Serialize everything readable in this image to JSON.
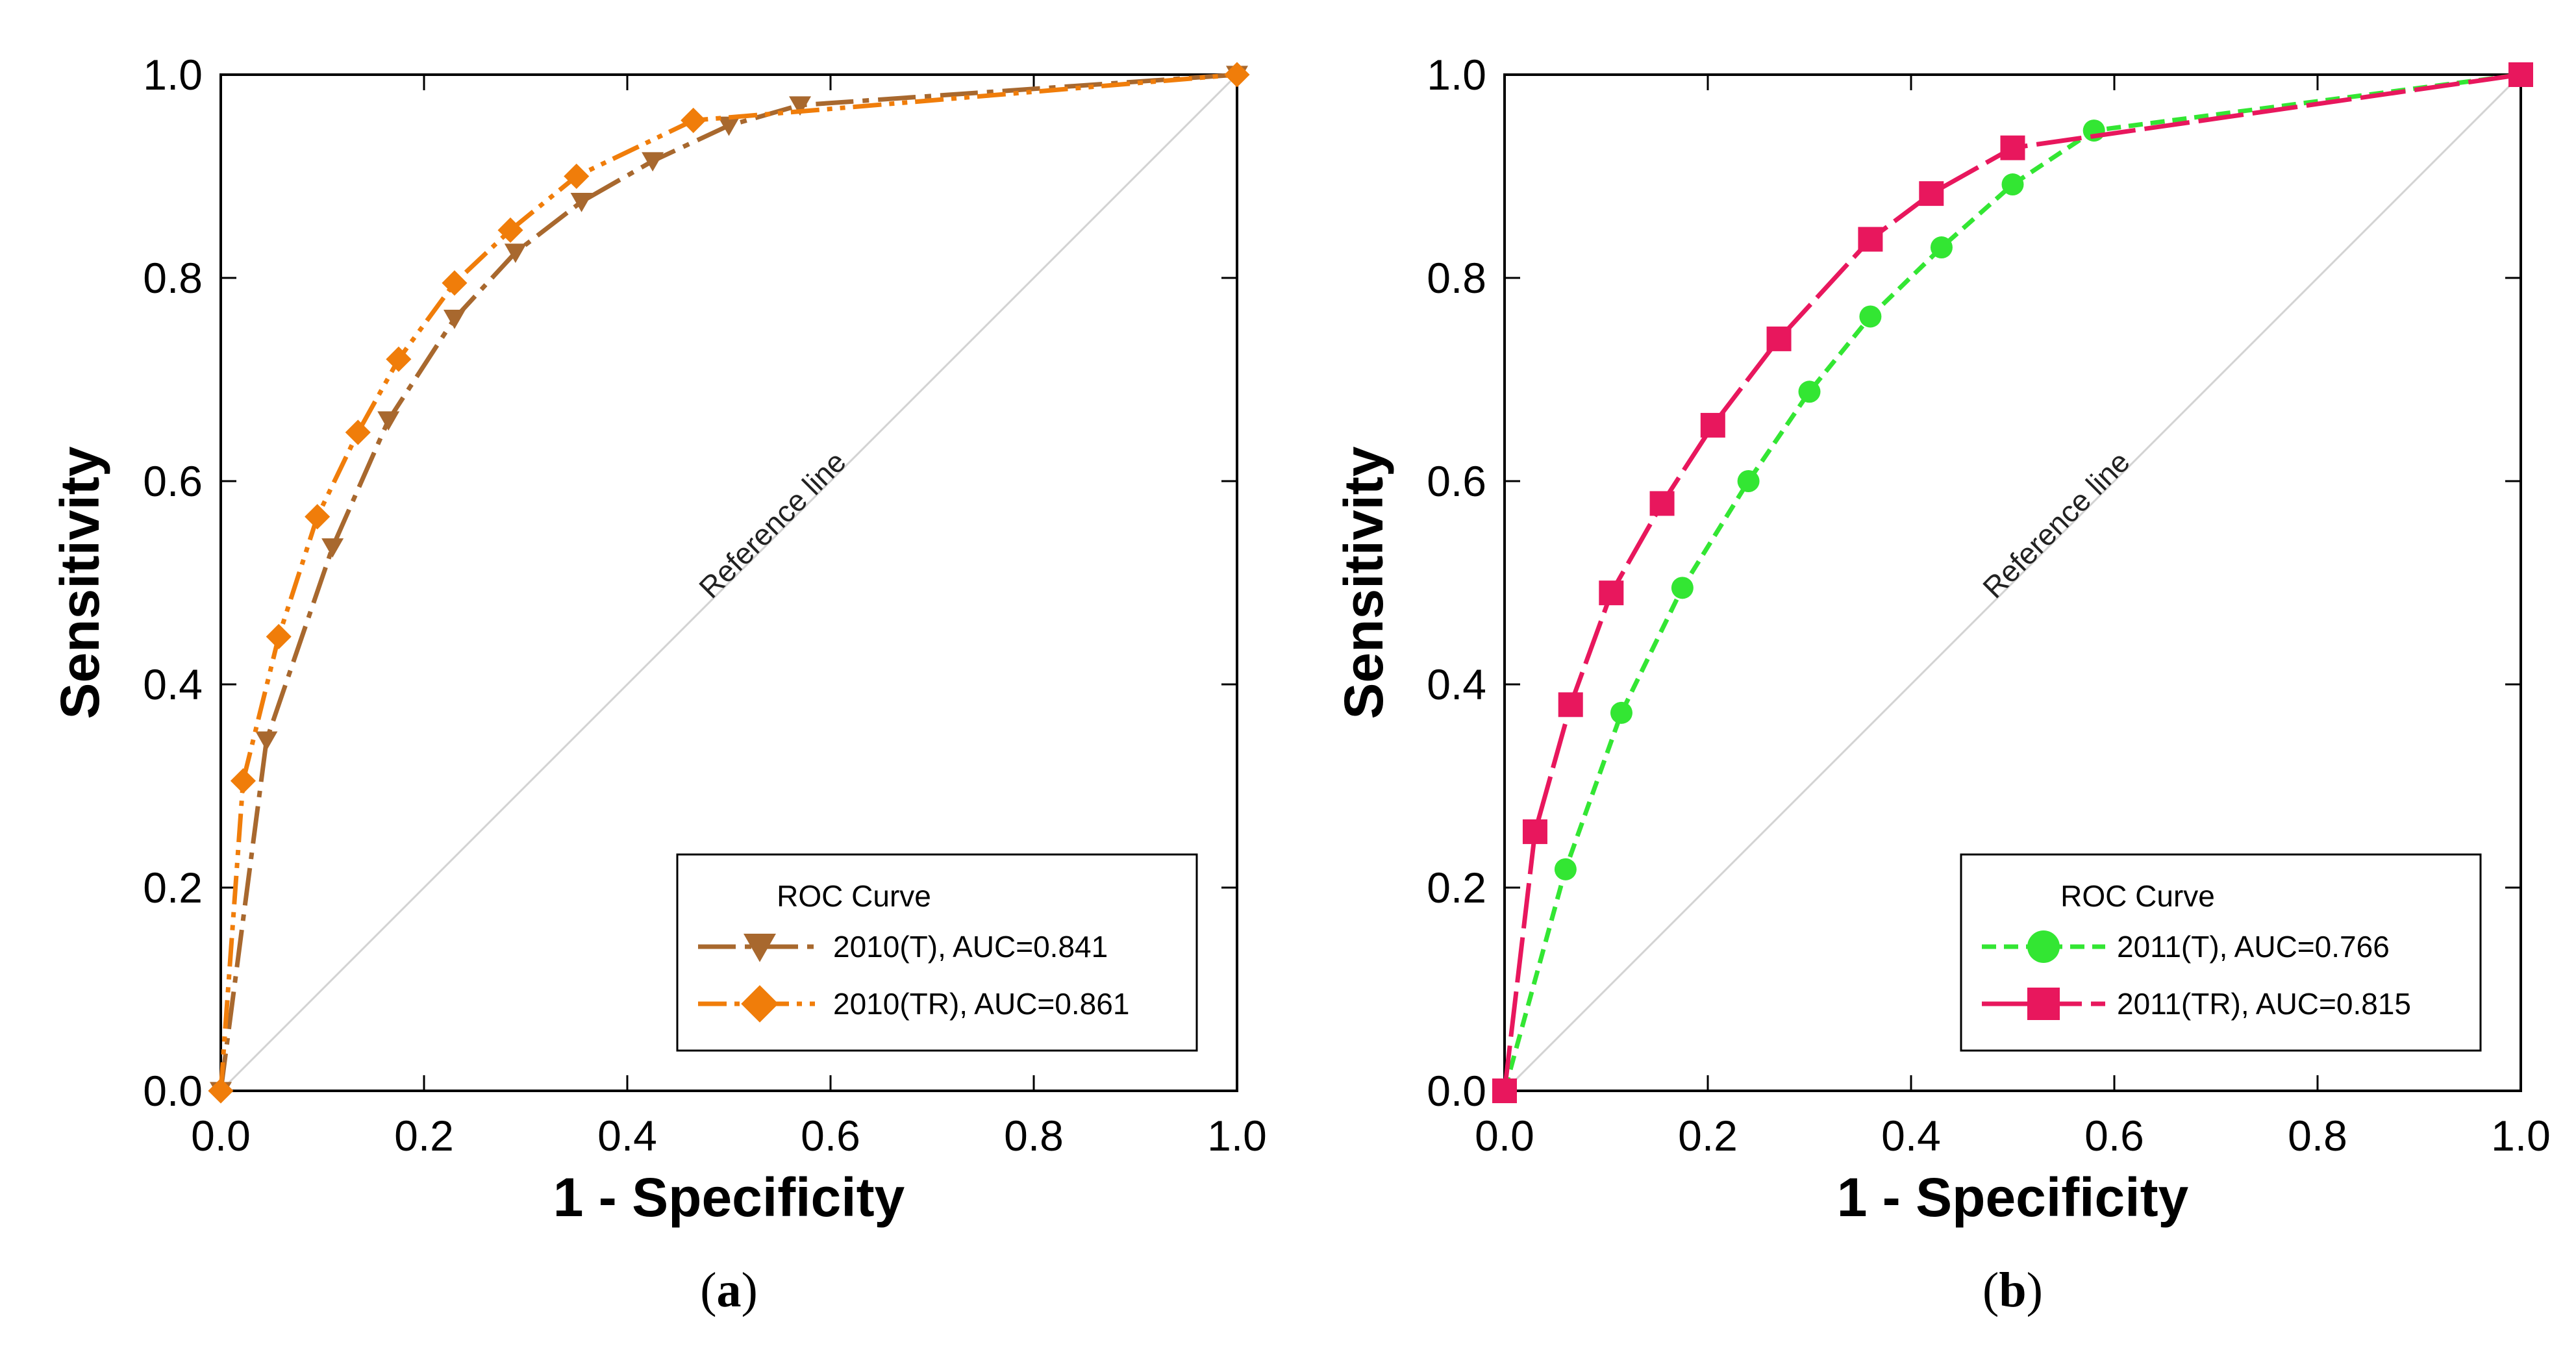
{
  "chart_data": [
    {
      "type": "line",
      "panel_label": "a",
      "xlabel": "1 - Specificity",
      "ylabel": "Sensitivity",
      "xlim": [
        0,
        1
      ],
      "ylim": [
        0,
        1
      ],
      "x_ticks": [
        "0.0",
        "0.2",
        "0.4",
        "0.6",
        "0.8",
        "1.0"
      ],
      "y_ticks": [
        "0.0",
        "0.2",
        "0.4",
        "0.6",
        "0.8",
        "1.0"
      ],
      "grid": false,
      "reference_line": {
        "label": "Reference line",
        "x": [
          0,
          1
        ],
        "y": [
          0,
          1
        ],
        "color": "#d3d3d3"
      },
      "legend": {
        "title": "ROC Curve",
        "placement": "bottom-right"
      },
      "series": [
        {
          "name": "2010(T), AUC=0.841",
          "color": "#a8682e",
          "marker": "triangle-down",
          "dash": "dash-dot",
          "x": [
            0.0,
            0.045,
            0.11,
            0.165,
            0.23,
            0.29,
            0.355,
            0.425,
            0.5,
            0.57,
            1.0
          ],
          "y": [
            0.0,
            0.345,
            0.535,
            0.66,
            0.76,
            0.825,
            0.875,
            0.915,
            0.95,
            0.97,
            1.0
          ]
        },
        {
          "name": "2010(TR), AUC=0.861",
          "color": "#f07d0a",
          "marker": "diamond",
          "dash": "dash-dot-dot",
          "x": [
            0.0,
            0.022,
            0.057,
            0.095,
            0.135,
            0.175,
            0.23,
            0.285,
            0.35,
            0.465,
            1.0
          ],
          "y": [
            0.0,
            0.305,
            0.447,
            0.565,
            0.648,
            0.72,
            0.795,
            0.847,
            0.9,
            0.955,
            1.0
          ]
        }
      ]
    },
    {
      "type": "line",
      "panel_label": "b",
      "xlabel": "1 - Specificity",
      "ylabel": "Sensitivity",
      "xlim": [
        0,
        1
      ],
      "ylim": [
        0,
        1
      ],
      "x_ticks": [
        "0.0",
        "0.2",
        "0.4",
        "0.6",
        "0.8",
        "1.0"
      ],
      "y_ticks": [
        "0.0",
        "0.2",
        "0.4",
        "0.6",
        "0.8",
        "1.0"
      ],
      "grid": false,
      "reference_line": {
        "label": "Reference line",
        "x": [
          0,
          1
        ],
        "y": [
          0,
          1
        ],
        "color": "#d3d3d3"
      },
      "legend": {
        "title": "ROC Curve",
        "placement": "bottom-right"
      },
      "series": [
        {
          "name": "2011(T), AUC=0.766",
          "color": "#33e633",
          "marker": "circle",
          "dash": "dashed",
          "x": [
            0.0,
            0.06,
            0.115,
            0.175,
            0.24,
            0.3,
            0.36,
            0.43,
            0.5,
            0.58,
            1.0
          ],
          "y": [
            0.0,
            0.218,
            0.372,
            0.495,
            0.6,
            0.688,
            0.762,
            0.83,
            0.892,
            0.945,
            1.0
          ]
        },
        {
          "name": "2011(TR), AUC=0.815",
          "color": "#e8175d",
          "marker": "square",
          "dash": "long-dash",
          "x": [
            0.0,
            0.03,
            0.065,
            0.105,
            0.155,
            0.205,
            0.27,
            0.36,
            0.42,
            0.5,
            1.0
          ],
          "y": [
            0.0,
            0.255,
            0.38,
            0.49,
            0.578,
            0.655,
            0.74,
            0.838,
            0.883,
            0.928,
            1.0
          ]
        }
      ]
    }
  ]
}
